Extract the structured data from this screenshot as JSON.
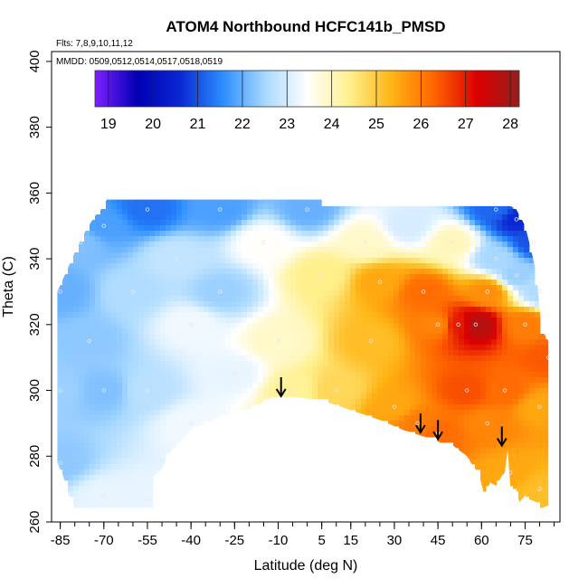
{
  "chart_data": {
    "type": "heatmap",
    "title": "ATOM4 Northbound HCFC141b_PMSD",
    "notes": [
      "Flts: 7,8,9,10,11,12",
      "MMDD: 0509,0512,0514,0517,0518,0519"
    ],
    "xlabel": "Latitude (deg N)",
    "ylabel": "Theta (C)",
    "xlim": [
      -88,
      87
    ],
    "ylim": [
      260,
      403
    ],
    "x_ticks": [
      -85,
      -70,
      -55,
      -40,
      -25,
      -10,
      5,
      15,
      30,
      45,
      60,
      75
    ],
    "y_ticks": [
      260,
      280,
      300,
      320,
      340,
      360,
      380,
      400
    ],
    "colorbar": {
      "min": 18.7,
      "max": 28.2,
      "ticks": [
        19,
        20,
        21,
        22,
        23,
        24,
        25,
        26,
        27,
        28
      ],
      "colors": [
        "#7f1fff",
        "#0000b4",
        "#0a28d2",
        "#2a8cff",
        "#a8d8ff",
        "#ffffff",
        "#fff08c",
        "#ffb414",
        "#ff6400",
        "#dc0000",
        "#961e1e"
      ]
    },
    "field_points": [
      {
        "lat": -85,
        "theta": 330,
        "value": 22.0
      },
      {
        "lat": -85,
        "theta": 300,
        "value": 22.4
      },
      {
        "lat": -85,
        "theta": 278,
        "value": 22.3
      },
      {
        "lat": -78,
        "theta": 345,
        "value": 22.2
      },
      {
        "lat": -75,
        "theta": 315,
        "value": 22.3
      },
      {
        "lat": -70,
        "theta": 350,
        "value": 21.8
      },
      {
        "lat": -70,
        "theta": 300,
        "value": 22.2
      },
      {
        "lat": -70,
        "theta": 268,
        "value": 23.2
      },
      {
        "lat": -60,
        "theta": 330,
        "value": 22.6
      },
      {
        "lat": -55,
        "theta": 355,
        "value": 21.3
      },
      {
        "lat": -55,
        "theta": 300,
        "value": 22.7
      },
      {
        "lat": -55,
        "theta": 267,
        "value": 23.2
      },
      {
        "lat": -45,
        "theta": 340,
        "value": 22.8
      },
      {
        "lat": -40,
        "theta": 320,
        "value": 23.3
      },
      {
        "lat": -40,
        "theta": 290,
        "value": 23.3
      },
      {
        "lat": -30,
        "theta": 355,
        "value": 21.8
      },
      {
        "lat": -30,
        "theta": 330,
        "value": 22.4
      },
      {
        "lat": -25,
        "theta": 305,
        "value": 23.2
      },
      {
        "lat": -15,
        "theta": 345,
        "value": 23.5
      },
      {
        "lat": -10,
        "theta": 315,
        "value": 23.9
      },
      {
        "lat": -5,
        "theta": 300,
        "value": 24.3
      },
      {
        "lat": 0,
        "theta": 355,
        "value": 22.0
      },
      {
        "lat": 5,
        "theta": 335,
        "value": 24.4
      },
      {
        "lat": 10,
        "theta": 300,
        "value": 24.8
      },
      {
        "lat": 20,
        "theta": 345,
        "value": 23.9
      },
      {
        "lat": 22,
        "theta": 315,
        "value": 25.2
      },
      {
        "lat": 25,
        "theta": 333,
        "value": 25.5
      },
      {
        "lat": 30,
        "theta": 295,
        "value": 25.5
      },
      {
        "lat": 35,
        "theta": 350,
        "value": 23.0
      },
      {
        "lat": 38,
        "theta": 290,
        "value": 26.0
      },
      {
        "lat": 40,
        "theta": 330,
        "value": 26.2
      },
      {
        "lat": 45,
        "theta": 320,
        "value": 25.9
      },
      {
        "lat": 45,
        "theta": 287,
        "value": 26.2
      },
      {
        "lat": 50,
        "theta": 345,
        "value": 24.0
      },
      {
        "lat": 52,
        "theta": 320,
        "value": 27.0
      },
      {
        "lat": 55,
        "theta": 300,
        "value": 26.5
      },
      {
        "lat": 58,
        "theta": 320,
        "value": 27.8
      },
      {
        "lat": 62,
        "theta": 330,
        "value": 25.8
      },
      {
        "lat": 62,
        "theta": 290,
        "value": 25.9
      },
      {
        "lat": 65,
        "theta": 355,
        "value": 21.2
      },
      {
        "lat": 65,
        "theta": 340,
        "value": 22.5
      },
      {
        "lat": 68,
        "theta": 300,
        "value": 26.2
      },
      {
        "lat": 70,
        "theta": 275,
        "value": 25.5
      },
      {
        "lat": 72,
        "theta": 352,
        "value": 20.6
      },
      {
        "lat": 72,
        "theta": 335,
        "value": 22.4
      },
      {
        "lat": 75,
        "theta": 320,
        "value": 26.0
      },
      {
        "lat": 78,
        "theta": 345,
        "value": 21.0
      },
      {
        "lat": 80,
        "theta": 330,
        "value": 22.6
      },
      {
        "lat": 80,
        "theta": 295,
        "value": 25.5
      },
      {
        "lat": 80,
        "theta": 270,
        "value": 25.2
      },
      {
        "lat": 83,
        "theta": 310,
        "value": 26.4
      }
    ],
    "upper_boundary": [
      {
        "lat": -86,
        "theta": 330
      },
      {
        "lat": -83,
        "theta": 336
      },
      {
        "lat": -80,
        "theta": 342
      },
      {
        "lat": -76,
        "theta": 349
      },
      {
        "lat": -73,
        "theta": 353
      },
      {
        "lat": -70,
        "theta": 356
      },
      {
        "lat": -69,
        "theta": 358
      },
      {
        "lat": -55,
        "theta": 358
      },
      {
        "lat": -40,
        "theta": 358
      },
      {
        "lat": -25,
        "theta": 358
      },
      {
        "lat": -10,
        "theta": 358
      },
      {
        "lat": 5,
        "theta": 358
      },
      {
        "lat": 5,
        "theta": 356
      },
      {
        "lat": 30,
        "theta": 356
      },
      {
        "lat": 60,
        "theta": 356
      },
      {
        "lat": 70,
        "theta": 356
      },
      {
        "lat": 72,
        "theta": 355
      },
      {
        "lat": 75,
        "theta": 350
      },
      {
        "lat": 77,
        "theta": 343
      },
      {
        "lat": 79,
        "theta": 335
      },
      {
        "lat": 80,
        "theta": 325
      },
      {
        "lat": 81,
        "theta": 318
      },
      {
        "lat": 83,
        "theta": 315
      },
      {
        "lat": 83,
        "theta": 265
      }
    ],
    "lower_boundary": [
      {
        "lat": 83,
        "theta": 265
      },
      {
        "lat": 80,
        "theta": 264
      },
      {
        "lat": 79,
        "theta": 266
      },
      {
        "lat": 76,
        "theta": 267
      },
      {
        "lat": 75,
        "theta": 268
      },
      {
        "lat": 73,
        "theta": 266
      },
      {
        "lat": 72,
        "theta": 270
      },
      {
        "lat": 70,
        "theta": 270
      },
      {
        "lat": 69,
        "theta": 282
      },
      {
        "lat": 68,
        "theta": 275
      },
      {
        "lat": 67,
        "theta": 274
      },
      {
        "lat": 65,
        "theta": 271
      },
      {
        "lat": 63,
        "theta": 272
      },
      {
        "lat": 61,
        "theta": 268
      },
      {
        "lat": 59,
        "theta": 275
      },
      {
        "lat": 57,
        "theta": 277
      },
      {
        "lat": 55,
        "theta": 280
      },
      {
        "lat": 52,
        "theta": 282
      },
      {
        "lat": 49,
        "theta": 284
      },
      {
        "lat": 46,
        "theta": 284
      },
      {
        "lat": 44,
        "theta": 285
      },
      {
        "lat": 40,
        "theta": 286
      },
      {
        "lat": 33,
        "theta": 288
      },
      {
        "lat": 25,
        "theta": 291
      },
      {
        "lat": 15,
        "theta": 294
      },
      {
        "lat": 5,
        "theta": 297
      },
      {
        "lat": -5,
        "theta": 298
      },
      {
        "lat": -12,
        "theta": 298
      },
      {
        "lat": -18,
        "theta": 295
      },
      {
        "lat": -25,
        "theta": 293
      },
      {
        "lat": -30,
        "theta": 292
      },
      {
        "lat": -35,
        "theta": 290
      },
      {
        "lat": -40,
        "theta": 288
      },
      {
        "lat": -45,
        "theta": 283
      },
      {
        "lat": -48,
        "theta": 280
      },
      {
        "lat": -50,
        "theta": 276
      },
      {
        "lat": -53,
        "theta": 274
      },
      {
        "lat": -53,
        "theta": 264
      },
      {
        "lat": -80,
        "theta": 264
      },
      {
        "lat": -82,
        "theta": 268
      },
      {
        "lat": -84,
        "theta": 274
      },
      {
        "lat": -86,
        "theta": 278
      }
    ],
    "arrows": [
      {
        "lat": -9,
        "theta": 304
      },
      {
        "lat": 39,
        "theta": 293
      },
      {
        "lat": 45,
        "theta": 291
      },
      {
        "lat": 67,
        "theta": 289
      }
    ]
  }
}
